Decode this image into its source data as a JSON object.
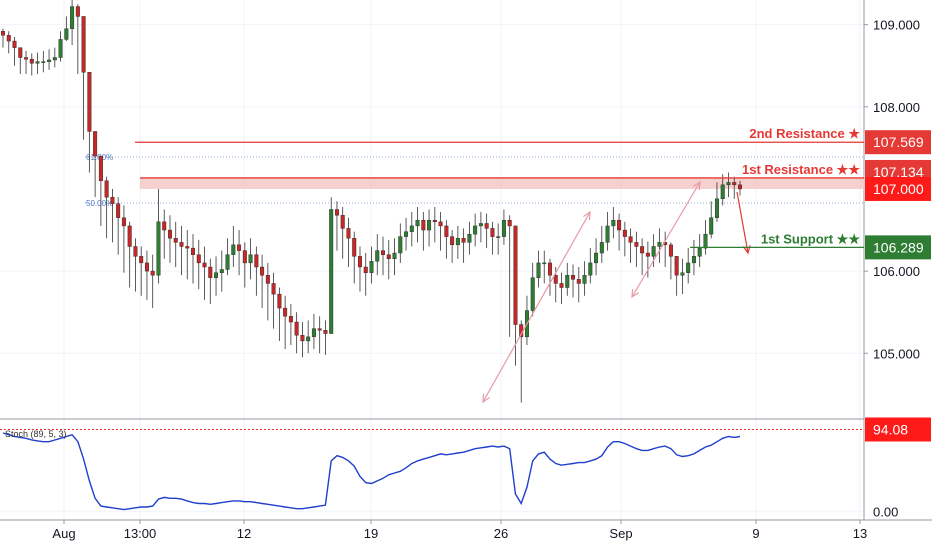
{
  "chart_data": {
    "type": "candlestick",
    "price_axis": {
      "ticks": [
        "109.000",
        "108.000",
        "106.000",
        "105.000"
      ],
      "range": [
        104.2,
        109.3
      ]
    },
    "time_axis": {
      "labels": [
        "Aug",
        "13:00",
        "12",
        "19",
        "26",
        "Sep",
        "9",
        "13"
      ]
    },
    "levels": [
      {
        "name": "2nd Resistance ★",
        "price": 107.569,
        "tag": "107.569",
        "color": "#e53935"
      },
      {
        "name": "1st Resistance ★★",
        "price": 107.134,
        "tag": "107.134",
        "color": "#e53935"
      },
      {
        "name": "1st Support ★★",
        "price": 106.289,
        "tag": "106.289",
        "color": "#2e7d32"
      }
    ],
    "current_price": {
      "value": 107.0,
      "tag": "107.000",
      "color": "#ff1a1a"
    },
    "fib_labels": [
      "61.80%",
      "50.00%"
    ],
    "series": [
      {
        "name": "",
        "close": [
          108.87,
          108.8,
          108.72,
          108.6,
          108.58,
          108.53,
          108.55,
          108.55,
          108.57,
          108.6,
          108.82,
          108.95,
          109.22,
          109.1,
          108.42,
          107.7,
          107.4,
          107.1,
          106.9,
          106.82,
          106.65,
          106.55,
          106.3,
          106.18,
          106.1,
          106.0,
          105.95,
          106.6,
          106.5,
          106.4,
          106.35,
          106.3,
          106.28,
          106.2,
          106.1,
          106.05,
          105.92,
          105.98,
          106.02,
          106.2,
          106.32,
          106.25,
          106.1,
          106.2,
          106.05,
          105.95,
          105.85,
          105.72,
          105.55,
          105.45,
          105.38,
          105.22,
          105.15,
          105.2,
          105.3,
          105.28,
          105.24,
          106.75,
          106.68,
          106.52,
          106.4,
          106.18,
          106.05,
          105.98,
          106.12,
          106.25,
          106.2,
          106.15,
          106.22,
          106.42,
          106.48,
          106.55,
          106.62,
          106.5,
          106.62,
          106.6,
          106.55,
          106.42,
          106.32,
          106.4,
          106.35,
          106.45,
          106.55,
          106.58,
          106.52,
          106.42,
          106.42,
          106.62,
          106.55,
          105.35,
          105.2,
          105.52,
          105.92,
          106.1,
          106.1,
          105.95,
          105.85,
          105.8,
          105.95,
          105.9,
          105.85,
          105.95,
          106.1,
          106.22,
          106.35,
          106.55,
          106.62,
          106.5,
          106.42,
          106.35,
          106.3,
          106.22,
          106.18,
          106.3,
          106.35,
          106.32,
          106.18,
          105.95,
          105.98,
          106.1,
          106.18,
          106.28,
          106.45,
          106.65,
          106.88,
          107.05,
          107.08,
          107.05,
          107.0
        ],
        "low": [
          108.72,
          108.65,
          108.5,
          108.4,
          108.4,
          108.38,
          108.4,
          108.42,
          108.45,
          108.48,
          108.55,
          108.8,
          108.75,
          108.4,
          107.6,
          107.2,
          106.9,
          106.55,
          106.4,
          106.35,
          106.2,
          105.98,
          105.8,
          105.75,
          105.7,
          105.65,
          105.55,
          105.85,
          106.15,
          106.1,
          106.05,
          105.95,
          105.9,
          105.85,
          105.78,
          105.65,
          105.6,
          105.7,
          105.75,
          105.95,
          106.05,
          105.95,
          105.8,
          105.9,
          105.7,
          105.55,
          105.4,
          105.3,
          105.15,
          105.05,
          105.1,
          105.0,
          104.95,
          105.0,
          105.05,
          105.0,
          104.98,
          105.3,
          106.25,
          106.15,
          106.05,
          105.85,
          105.75,
          105.7,
          105.85,
          105.95,
          105.95,
          105.9,
          105.95,
          106.1,
          106.25,
          106.3,
          106.35,
          106.25,
          106.3,
          106.35,
          106.25,
          106.15,
          106.1,
          106.15,
          106.1,
          106.2,
          106.3,
          106.35,
          106.28,
          106.2,
          106.2,
          106.32,
          105.2,
          104.85,
          104.4,
          105.1,
          105.45,
          105.8,
          105.85,
          105.7,
          105.62,
          105.6,
          105.7,
          105.68,
          105.62,
          105.7,
          105.85,
          105.95,
          106.1,
          106.25,
          106.4,
          106.25,
          106.18,
          106.1,
          106.05,
          105.95,
          105.92,
          106.05,
          106.1,
          106.05,
          105.9,
          105.7,
          105.72,
          105.85,
          105.95,
          106.05,
          106.2,
          106.4,
          106.6,
          106.8,
          106.9,
          106.88,
          106.92
        ],
        "high": [
          108.95,
          108.92,
          108.85,
          108.72,
          108.68,
          108.65,
          108.66,
          108.68,
          108.7,
          108.72,
          108.92,
          109.1,
          109.3,
          109.25,
          109.1,
          107.95,
          107.65,
          107.4,
          107.15,
          107.0,
          106.9,
          106.8,
          106.6,
          106.4,
          106.3,
          106.25,
          106.2,
          107.0,
          106.75,
          106.68,
          106.6,
          106.55,
          106.5,
          106.45,
          106.38,
          106.3,
          106.15,
          106.18,
          106.25,
          106.4,
          106.55,
          106.5,
          106.35,
          106.4,
          106.3,
          106.2,
          106.1,
          105.98,
          105.8,
          105.7,
          105.6,
          105.5,
          105.38,
          105.4,
          105.48,
          105.45,
          105.4,
          106.9,
          106.85,
          106.78,
          106.65,
          106.48,
          106.3,
          106.22,
          106.3,
          106.45,
          106.42,
          106.38,
          106.4,
          106.58,
          106.65,
          106.72,
          106.78,
          106.72,
          106.75,
          106.78,
          106.72,
          106.62,
          106.5,
          106.55,
          106.52,
          106.6,
          106.7,
          106.72,
          106.7,
          106.6,
          106.58,
          106.75,
          106.68,
          105.45,
          105.4,
          105.7,
          106.1,
          106.25,
          106.25,
          106.15,
          106.05,
          105.98,
          106.1,
          106.08,
          106.05,
          106.12,
          106.28,
          106.4,
          106.55,
          106.72,
          106.78,
          106.7,
          106.6,
          106.52,
          106.48,
          106.4,
          106.36,
          106.45,
          106.52,
          106.48,
          106.35,
          106.18,
          106.15,
          106.28,
          106.38,
          106.45,
          106.62,
          106.85,
          107.08,
          107.18,
          107.2,
          107.15,
          107.1
        ]
      }
    ],
    "indicator": {
      "label": "Stoch (89, 5, 3)",
      "ticks": [
        "0.00"
      ],
      "overbought_tag": "94.08",
      "range": [
        -10,
        105
      ],
      "values": [
        90,
        88,
        86,
        85,
        84,
        82,
        81,
        80,
        80,
        82,
        84,
        86,
        88,
        80,
        60,
        35,
        15,
        6,
        5,
        4,
        3,
        2,
        3,
        4,
        5,
        5,
        6,
        14,
        16,
        15,
        15,
        14,
        12,
        10,
        9,
        9,
        8,
        9,
        10,
        11,
        12,
        12,
        11,
        11,
        10,
        9,
        8,
        7,
        6,
        5,
        4,
        3,
        3,
        4,
        5,
        6,
        7,
        58,
        64,
        62,
        58,
        52,
        40,
        33,
        32,
        35,
        38,
        42,
        44,
        46,
        50,
        55,
        58,
        60,
        62,
        64,
        66,
        65,
        66,
        67,
        68,
        70,
        72,
        73,
        74,
        75,
        74,
        75,
        72,
        20,
        9,
        28,
        58,
        66,
        68,
        60,
        55,
        53,
        54,
        55,
        56,
        56,
        58,
        60,
        64,
        74,
        80,
        80,
        78,
        75,
        72,
        70,
        70,
        72,
        74,
        75,
        72,
        65,
        63,
        64,
        66,
        70,
        74,
        76,
        80,
        84,
        86,
        85,
        86
      ]
    }
  }
}
